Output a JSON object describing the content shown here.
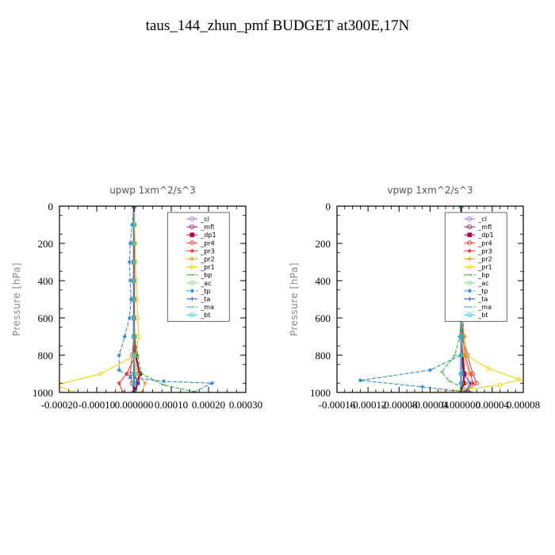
{
  "title": "taus_144_zhun_pmf  BUDGET at300E,17N",
  "chart_data": [
    {
      "type": "line",
      "title": "upwp   1xm^2/s^3",
      "ylabel": "Pressure [hPa]",
      "xlim": [
        -0.0002,
        0.0003
      ],
      "ylim": [
        1000,
        0
      ],
      "yticks": [
        0,
        200,
        400,
        600,
        800,
        1000
      ],
      "xticks": [
        -0.0002,
        -0.0001,
        0.0,
        0.0001,
        0.0002,
        0.0003
      ],
      "xtick_labels": [
        "-0.00020",
        "-0.00010",
        "0.000000",
        "0.00010",
        "0.00020",
        "0.00030"
      ],
      "legend_position": "top-right",
      "series": [
        {
          "name": "_cl",
          "color": "#9370db",
          "marker": "circle",
          "x": [
            0,
            0,
            0,
            0,
            0,
            0,
            0,
            0,
            0,
            0,
            0,
            0
          ],
          "y": [
            0,
            100,
            200,
            300,
            400,
            500,
            600,
            700,
            800,
            900,
            950,
            1000
          ]
        },
        {
          "name": "_mfl",
          "color": "#8b1a6b",
          "marker": "circle",
          "x": [
            0,
            0,
            0,
            0,
            0,
            0,
            0,
            0,
            0,
            0,
            0,
            0
          ],
          "y": [
            0,
            100,
            200,
            300,
            400,
            500,
            600,
            700,
            800,
            900,
            950,
            1000
          ]
        },
        {
          "name": "_dp1",
          "color": "#b0004d",
          "marker": "square",
          "x": [
            0,
            0,
            0,
            0,
            0,
            0,
            0,
            0,
            5e-06,
            1.5e-05,
            1e-05,
            0
          ],
          "y": [
            0,
            100,
            200,
            300,
            400,
            500,
            600,
            700,
            800,
            900,
            950,
            1000
          ]
        },
        {
          "name": "_pr4",
          "color": "#e03030",
          "marker": "circle",
          "x": [
            0,
            0,
            0,
            0,
            0,
            0,
            0,
            0,
            -5e-06,
            -1e-05,
            -5e-06,
            0
          ],
          "y": [
            0,
            100,
            200,
            300,
            400,
            500,
            600,
            700,
            800,
            900,
            950,
            1000
          ]
        },
        {
          "name": "_pr3",
          "color": "#e83030",
          "marker": "star",
          "x": [
            0,
            0,
            0,
            0,
            0,
            0,
            0,
            2e-06,
            5e-06,
            -2e-05,
            -4e-05,
            -3e-05
          ],
          "y": [
            0,
            100,
            200,
            300,
            400,
            500,
            600,
            700,
            800,
            900,
            950,
            1000
          ]
        },
        {
          "name": "_pr2",
          "color": "#f0a030",
          "marker": "star",
          "x": [
            0,
            0,
            0,
            0,
            0,
            0,
            0,
            0,
            0,
            1e-05,
            3e-05,
            2e-05
          ],
          "y": [
            0,
            100,
            200,
            300,
            400,
            500,
            600,
            700,
            800,
            900,
            950,
            1000
          ]
        },
        {
          "name": "_pr1",
          "color": "#f0d000",
          "marker": "circle",
          "x": [
            0,
            2e-06,
            3e-06,
            4e-06,
            6e-06,
            8e-06,
            1e-05,
            1.2e-05,
            5e-06,
            -9e-05,
            -0.00021,
            -0.00016
          ],
          "y": [
            0,
            100,
            200,
            300,
            400,
            500,
            600,
            700,
            800,
            900,
            960,
            1000
          ]
        },
        {
          "name": "_bp",
          "color": "#22aa22",
          "marker": "dash",
          "x": [
            0,
            0,
            0,
            0,
            0,
            0,
            0,
            2e-06,
            1e-05,
            2e-05,
            8e-05,
            0.00017
          ],
          "y": [
            0,
            100,
            200,
            300,
            400,
            500,
            600,
            700,
            800,
            900,
            960,
            1000
          ]
        },
        {
          "name": "_ac",
          "color": "#7ce07c",
          "marker": "circle",
          "x": [
            0,
            0,
            0,
            0,
            0,
            0,
            0,
            0,
            0,
            5e-06,
            1e-05,
            5e-06
          ],
          "y": [
            0,
            100,
            200,
            300,
            400,
            500,
            600,
            700,
            800,
            900,
            950,
            1000
          ]
        },
        {
          "name": "_tp",
          "color": "#2080c8",
          "marker": "star",
          "x": [
            0,
            -5e-06,
            -1e-05,
            -1.2e-05,
            -1e-05,
            -8e-06,
            -1.2e-05,
            -2.5e-05,
            -4e-05,
            -4e-05,
            -1e-05,
            8e-05,
            0.00021,
            0.00016
          ],
          "y": [
            0,
            100,
            200,
            300,
            400,
            500,
            600,
            700,
            800,
            880,
            920,
            940,
            950,
            1000
          ]
        },
        {
          "name": "_ta",
          "color": "#2040c0",
          "marker": "plus",
          "x": [
            0,
            0,
            0,
            0,
            0,
            0,
            0,
            0,
            0,
            0,
            1e-05,
            5e-06
          ],
          "y": [
            0,
            100,
            200,
            300,
            400,
            500,
            600,
            700,
            800,
            900,
            950,
            1000
          ]
        },
        {
          "name": "_ma",
          "color": "#4090d0",
          "marker": "dash",
          "x": [
            0,
            0,
            0,
            0,
            0,
            0,
            0,
            0,
            0,
            0,
            0,
            0
          ],
          "y": [
            0,
            100,
            200,
            300,
            400,
            500,
            600,
            700,
            800,
            900,
            950,
            1000
          ]
        },
        {
          "name": "_bt",
          "color": "#20d0e0",
          "marker": "circle",
          "x": [
            0,
            0,
            0,
            0,
            0,
            0,
            0,
            0,
            0,
            0,
            0,
            0
          ],
          "y": [
            0,
            100,
            200,
            300,
            400,
            500,
            600,
            700,
            800,
            900,
            950,
            1000
          ]
        }
      ]
    },
    {
      "type": "line",
      "title": "vpwp   1xm^2/s^3",
      "ylabel": "Pressure [hPa]",
      "xlim": [
        -0.00016,
        8e-05
      ],
      "ylim": [
        1000,
        0
      ],
      "yticks": [
        0,
        200,
        400,
        600,
        800,
        1000
      ],
      "xticks": [
        -0.00016,
        -0.00012,
        -8e-05,
        -4e-05,
        0.0,
        4e-05,
        8e-05
      ],
      "xtick_labels": [
        "-0.00016",
        "-0.00012",
        "-0.00008",
        "-0.00004",
        "0.000000",
        "0.00004",
        "0.00008"
      ],
      "legend_position": "top-right",
      "series": [
        {
          "name": "_cl",
          "color": "#9370db",
          "marker": "circle",
          "x": [
            0,
            0,
            0,
            0,
            0,
            0,
            0,
            0,
            0,
            0,
            0,
            0
          ],
          "y": [
            0,
            100,
            200,
            300,
            400,
            500,
            600,
            700,
            800,
            900,
            950,
            1000
          ]
        },
        {
          "name": "_mfl",
          "color": "#8b1a6b",
          "marker": "circle",
          "x": [
            0,
            0,
            0,
            0,
            0,
            0,
            0,
            0,
            0,
            0,
            0,
            0
          ],
          "y": [
            0,
            100,
            200,
            300,
            400,
            500,
            600,
            700,
            800,
            900,
            950,
            1000
          ]
        },
        {
          "name": "_dp1",
          "color": "#b0004d",
          "marker": "square",
          "x": [
            0,
            0,
            0,
            0,
            0,
            0,
            0,
            0,
            2e-06,
            4e-06,
            3e-06,
            0
          ],
          "y": [
            0,
            100,
            200,
            300,
            400,
            500,
            600,
            700,
            800,
            900,
            950,
            1000
          ]
        },
        {
          "name": "_pr4",
          "color": "#e03030",
          "marker": "circle",
          "x": [
            0,
            0,
            0,
            0,
            0,
            0,
            0,
            3e-06,
            8e-06,
            1.5e-05,
            2e-05,
            5e-06
          ],
          "y": [
            0,
            100,
            200,
            300,
            400,
            500,
            600,
            700,
            800,
            900,
            950,
            1000
          ]
        },
        {
          "name": "_pr3",
          "color": "#e83030",
          "marker": "star",
          "x": [
            0,
            0,
            0,
            0,
            0,
            0,
            0,
            2e-06,
            5e-06,
            1.2e-05,
            1.5e-05,
            5e-06
          ],
          "y": [
            0,
            100,
            200,
            300,
            400,
            500,
            600,
            700,
            800,
            900,
            950,
            1000
          ]
        },
        {
          "name": "_pr2",
          "color": "#f0a030",
          "marker": "star",
          "x": [
            0,
            0,
            0,
            0,
            0,
            0,
            0,
            0,
            3e-06,
            1e-05,
            8e-06,
            0
          ],
          "y": [
            0,
            100,
            200,
            300,
            400,
            500,
            600,
            700,
            800,
            900,
            950,
            1000
          ]
        },
        {
          "name": "_pr1",
          "color": "#f0d000",
          "marker": "circle",
          "x": [
            0,
            0,
            0,
            0,
            0,
            1e-06,
            2e-06,
            4e-06,
            6e-06,
            3.5e-05,
            7.5e-05,
            5e-05,
            -3e-05
          ],
          "y": [
            0,
            100,
            200,
            300,
            400,
            500,
            600,
            700,
            800,
            870,
            930,
            960,
            1000
          ]
        },
        {
          "name": "_bp",
          "color": "#22aa22",
          "marker": "dash",
          "x": [
            0,
            0,
            0,
            0,
            0,
            0,
            0,
            -2e-06,
            -8e-06,
            -2.5e-05,
            -1.5e-05,
            1.5e-05
          ],
          "y": [
            0,
            100,
            200,
            300,
            400,
            500,
            600,
            700,
            800,
            890,
            940,
            1000
          ]
        },
        {
          "name": "_ac",
          "color": "#7ce07c",
          "marker": "circle",
          "x": [
            0,
            0,
            0,
            0,
            0,
            0,
            0,
            0,
            0,
            0,
            0,
            0
          ],
          "y": [
            0,
            100,
            200,
            300,
            400,
            500,
            600,
            700,
            800,
            900,
            950,
            1000
          ]
        },
        {
          "name": "_tp",
          "color": "#2080c8",
          "marker": "star",
          "x": [
            0,
            0,
            1e-06,
            2e-06,
            2e-06,
            3e-06,
            3e-06,
            2e-06,
            0,
            -4e-05,
            -0.00013,
            -5e-05,
            1e-05
          ],
          "y": [
            0,
            100,
            200,
            300,
            400,
            500,
            600,
            700,
            800,
            880,
            935,
            970,
            1000
          ]
        },
        {
          "name": "_ta",
          "color": "#2040c0",
          "marker": "plus",
          "x": [
            0,
            0,
            0,
            0,
            0,
            0,
            0,
            0,
            0,
            3e-06,
            1.2e-05,
            5e-06
          ],
          "y": [
            0,
            100,
            200,
            300,
            400,
            500,
            600,
            700,
            800,
            900,
            950,
            1000
          ]
        },
        {
          "name": "_ma",
          "color": "#4090d0",
          "marker": "dash",
          "x": [
            0,
            0,
            0,
            0,
            0,
            0,
            0,
            0,
            0,
            0,
            0,
            0
          ],
          "y": [
            0,
            100,
            200,
            300,
            400,
            500,
            600,
            700,
            800,
            900,
            950,
            1000
          ]
        },
        {
          "name": "_bt",
          "color": "#20d0e0",
          "marker": "circle",
          "x": [
            0,
            0,
            0,
            0,
            0,
            0,
            0,
            0,
            0,
            0,
            0,
            0
          ],
          "y": [
            0,
            100,
            200,
            300,
            400,
            500,
            600,
            700,
            800,
            900,
            950,
            1000
          ]
        }
      ]
    }
  ]
}
